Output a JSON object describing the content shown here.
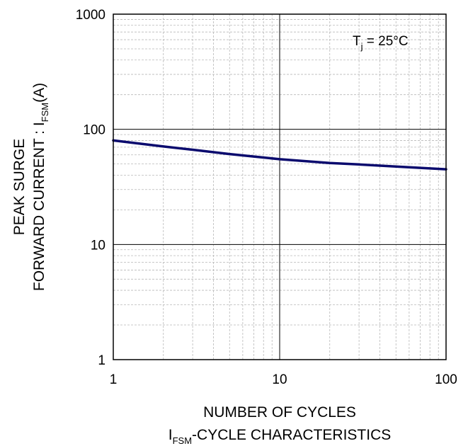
{
  "chart_data": {
    "type": "line",
    "x_scale": "log",
    "y_scale": "log",
    "xlim": [
      1,
      100
    ],
    "ylim": [
      1,
      1000
    ],
    "x_ticks": [
      "1",
      "10",
      "100"
    ],
    "y_ticks": [
      "1",
      "10",
      "100",
      "1000"
    ],
    "xlabel": "NUMBER OF CYCLES",
    "ylabel_line1": "PEAK SURGE",
    "ylabel_line2_main": "FORWARD CURRENT : I",
    "ylabel_line2_sub": "FSM",
    "ylabel_line2_tail": "(A)",
    "caption_main": "I",
    "caption_sub": "FSM",
    "caption_tail": "-CYCLE CHARACTERISTICS",
    "annotation_main": "T",
    "annotation_sub": "j",
    "annotation_tail": " = 25°C",
    "grid": true,
    "line_color": "#0b0b6e",
    "series": [
      {
        "x": [
          1,
          2,
          3,
          5,
          7,
          10,
          20,
          30,
          50,
          70,
          100
        ],
        "y": [
          80,
          71,
          66.5,
          61,
          58,
          55,
          51,
          49.5,
          47.5,
          46.3,
          45
        ]
      }
    ]
  }
}
